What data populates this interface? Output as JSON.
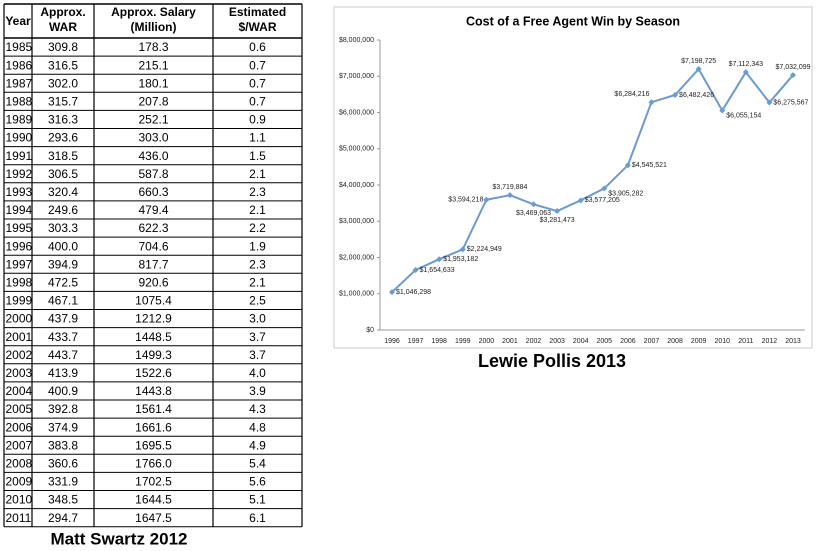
{
  "table": {
    "header": [
      [
        "Year"
      ],
      [
        "Approx.",
        "WAR"
      ],
      [
        "Approx. Salary",
        "(Million)"
      ],
      [
        "Estimated",
        "$/WAR"
      ]
    ],
    "rows": [
      [
        "1985",
        "309.8",
        "178.3",
        "0.6"
      ],
      [
        "1986",
        "316.5",
        "215.1",
        "0.7"
      ],
      [
        "1987",
        "302.0",
        "180.1",
        "0.7"
      ],
      [
        "1988",
        "315.7",
        "207.8",
        "0.7"
      ],
      [
        "1989",
        "316.3",
        "252.1",
        "0.9"
      ],
      [
        "1990",
        "293.6",
        "303.0",
        "1.1"
      ],
      [
        "1991",
        "318.5",
        "436.0",
        "1.5"
      ],
      [
        "1992",
        "306.5",
        "587.8",
        "2.1"
      ],
      [
        "1993",
        "320.4",
        "660.3",
        "2.3"
      ],
      [
        "1994",
        "249.6",
        "479.4",
        "2.1"
      ],
      [
        "1995",
        "303.3",
        "622.3",
        "2.2"
      ],
      [
        "1996",
        "400.0",
        "704.6",
        "1.9"
      ],
      [
        "1997",
        "394.9",
        "817.7",
        "2.3"
      ],
      [
        "1998",
        "472.5",
        "920.6",
        "2.1"
      ],
      [
        "1999",
        "467.1",
        "1075.4",
        "2.5"
      ],
      [
        "2000",
        "437.9",
        "1212.9",
        "3.0"
      ],
      [
        "2001",
        "433.7",
        "1448.5",
        "3.7"
      ],
      [
        "2002",
        "443.7",
        "1499.3",
        "3.7"
      ],
      [
        "2003",
        "413.9",
        "1522.6",
        "4.0"
      ],
      [
        "2004",
        "400.9",
        "1443.8",
        "3.9"
      ],
      [
        "2005",
        "392.8",
        "1561.4",
        "4.3"
      ],
      [
        "2006",
        "374.9",
        "1661.6",
        "4.8"
      ],
      [
        "2007",
        "383.8",
        "1695.5",
        "4.9"
      ],
      [
        "2008",
        "360.6",
        "1766.0",
        "5.4"
      ],
      [
        "2009",
        "331.9",
        "1702.5",
        "5.6"
      ],
      [
        "2010",
        "348.5",
        "1644.5",
        "5.1"
      ],
      [
        "2011",
        "294.7",
        "1647.5",
        "6.1"
      ]
    ],
    "caption": "Matt Swartz 2012"
  },
  "chart_data": {
    "type": "line",
    "title": "Cost of a Free Agent Win by Season",
    "categories": [
      "1996",
      "1997",
      "1998",
      "1999",
      "2000",
      "2001",
      "2002",
      "2003",
      "2004",
      "2005",
      "2006",
      "2007",
      "2008",
      "2009",
      "2010",
      "2011",
      "2012",
      "2013"
    ],
    "values": [
      1046298,
      1654633,
      1953182,
      2224949,
      3594218,
      3719884,
      3469063,
      3281473,
      3577205,
      3905282,
      4545521,
      6284216,
      6482426,
      7198725,
      6055154,
      7112343,
      6275567,
      7032099
    ],
    "value_labels": [
      "$1,046,298",
      "$1,654,633",
      "$1,953,182",
      "$2,224,949",
      "$3,594,218",
      "$3,719,884",
      "$3,469,063",
      "$3,281,473",
      "$3,577,205",
      "$3,905,282",
      "$4,545,521",
      "$6,284,216",
      "$6,482,426",
      "$7,198,725",
      "$6,055,154",
      "$7,112,343",
      "$6,275,567",
      "$7,032,099"
    ],
    "color": "#6a9bd1",
    "ylim": [
      0,
      8000000
    ],
    "yticks": [
      {
        "value": 0,
        "label": "$0"
      },
      {
        "value": 1000000,
        "label": "$1,000,000"
      },
      {
        "value": 2000000,
        "label": "$2,000,000"
      },
      {
        "value": 3000000,
        "label": "$3,000,000"
      },
      {
        "value": 4000000,
        "label": "$4,000,000"
      },
      {
        "value": 5000000,
        "label": "$5,000,000"
      },
      {
        "value": 6000000,
        "label": "$6,000,000"
      },
      {
        "value": 7000000,
        "label": "$7,000,000"
      },
      {
        "value": 8000000,
        "label": "$8,000,000"
      }
    ],
    "caption": "Lewie Pollis  2013"
  }
}
